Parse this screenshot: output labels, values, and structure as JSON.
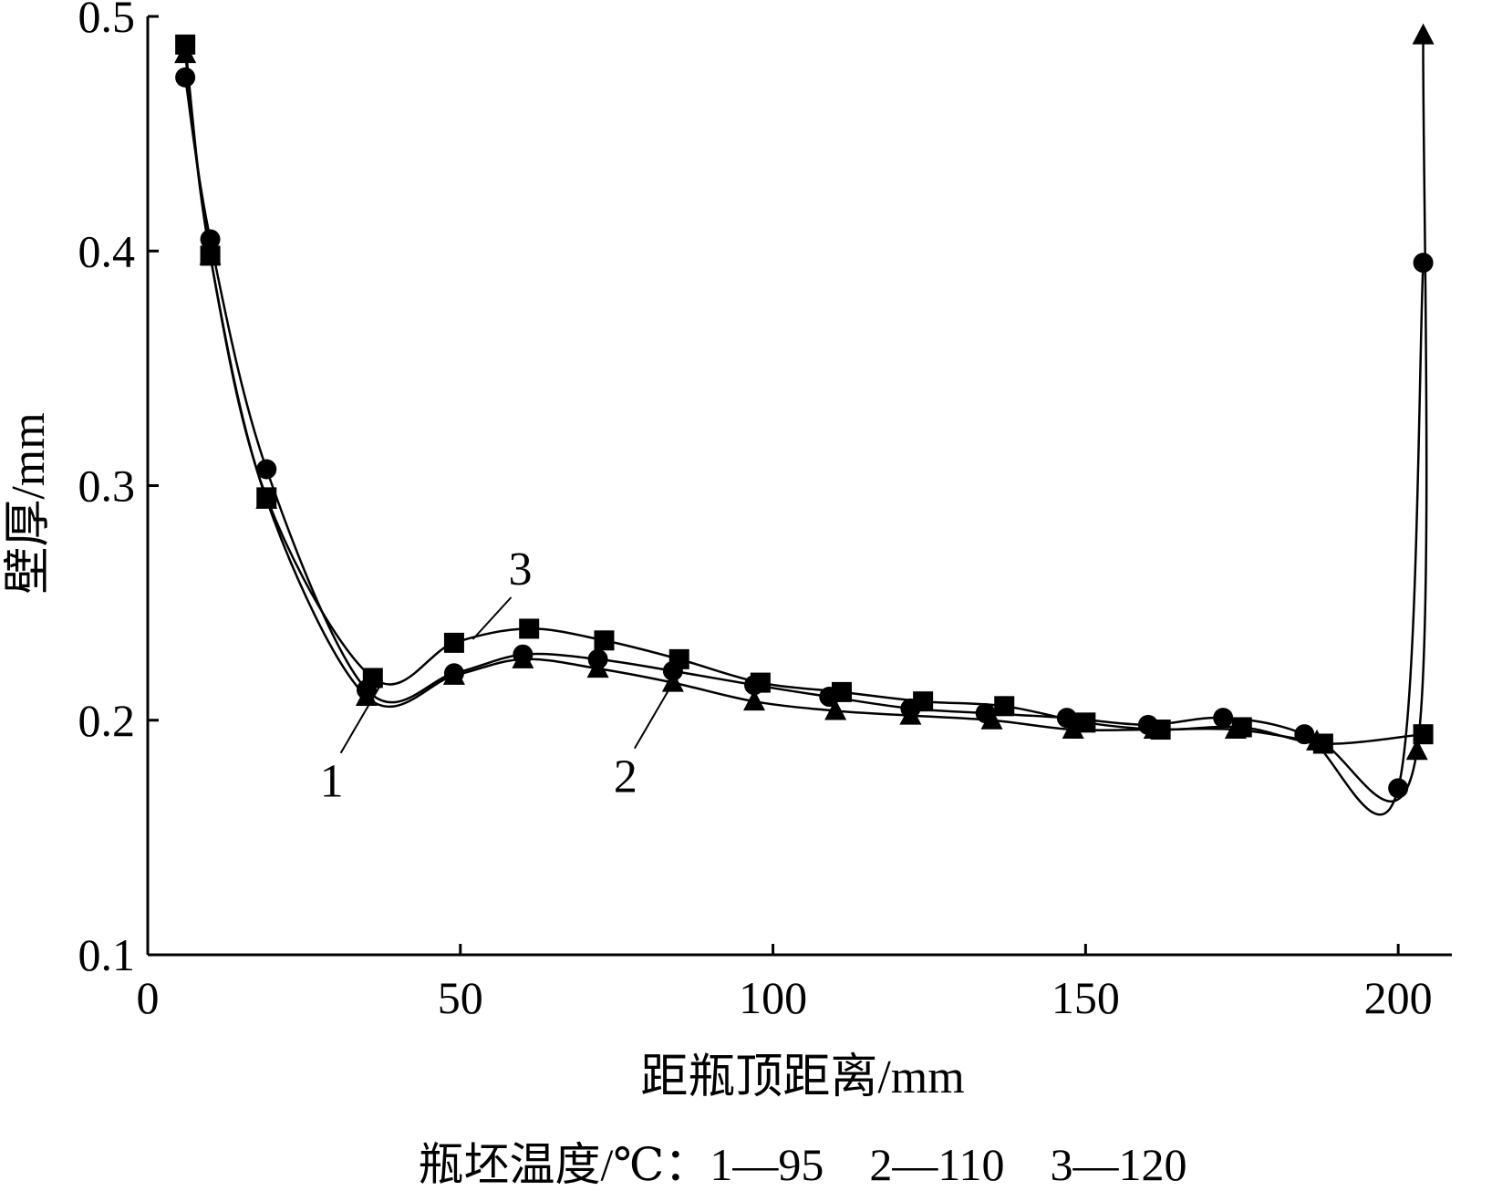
{
  "chart_data": {
    "type": "line",
    "xlabel": "距瓶顶距离/mm",
    "ylabel": "壁厚/mm",
    "xlim": [
      0,
      200
    ],
    "ylim": [
      0.1,
      0.5
    ],
    "x_ticks": [
      "0",
      "50",
      "100",
      "150",
      "200"
    ],
    "y_ticks": [
      "0.1",
      "0.2",
      "0.3",
      "0.4",
      "0.5"
    ],
    "grid": false,
    "caption": "瓶坯温度/℃：1—95　2—110　3—120",
    "series": [
      {
        "name": "1",
        "marker": "circle",
        "points": [
          [
            6,
            0.474
          ],
          [
            10,
            0.405
          ],
          [
            19,
            0.307
          ],
          [
            35,
            0.213
          ],
          [
            49,
            0.22
          ],
          [
            60,
            0.228
          ],
          [
            72,
            0.226
          ],
          [
            84,
            0.221
          ],
          [
            97,
            0.215
          ],
          [
            109,
            0.21
          ],
          [
            122,
            0.205
          ],
          [
            134,
            0.203
          ],
          [
            147,
            0.201
          ],
          [
            160,
            0.198
          ],
          [
            172,
            0.201
          ],
          [
            185,
            0.194
          ],
          [
            200,
            0.171
          ],
          [
            204,
            0.395
          ]
        ]
      },
      {
        "name": "2",
        "marker": "triangle",
        "points": [
          [
            6,
            0.484
          ],
          [
            10,
            0.398
          ],
          [
            19,
            0.294
          ],
          [
            35,
            0.21
          ],
          [
            49,
            0.219
          ],
          [
            60,
            0.226
          ],
          [
            72,
            0.222
          ],
          [
            84,
            0.216
          ],
          [
            97,
            0.208
          ],
          [
            110,
            0.204
          ],
          [
            122,
            0.202
          ],
          [
            135,
            0.2
          ],
          [
            148,
            0.196
          ],
          [
            161,
            0.196
          ],
          [
            174,
            0.196
          ],
          [
            187,
            0.191
          ],
          [
            203,
            0.187
          ],
          [
            204,
            0.492
          ]
        ]
      },
      {
        "name": "3",
        "marker": "square",
        "points": [
          [
            6,
            0.488
          ],
          [
            10,
            0.398
          ],
          [
            19,
            0.295
          ],
          [
            36,
            0.218
          ],
          [
            49,
            0.233
          ],
          [
            61,
            0.239
          ],
          [
            73,
            0.234
          ],
          [
            85,
            0.226
          ],
          [
            98,
            0.216
          ],
          [
            111,
            0.212
          ],
          [
            124,
            0.208
          ],
          [
            137,
            0.206
          ],
          [
            150,
            0.199
          ],
          [
            162,
            0.196
          ],
          [
            175,
            0.197
          ],
          [
            188,
            0.19
          ],
          [
            204,
            0.194
          ]
        ]
      }
    ],
    "curve_labels": [
      {
        "text": "1",
        "series": "1",
        "at_x": 37
      },
      {
        "text": "2",
        "series": "2",
        "at_x": 84
      },
      {
        "text": "3",
        "series": "3",
        "at_x": 52
      }
    ]
  }
}
